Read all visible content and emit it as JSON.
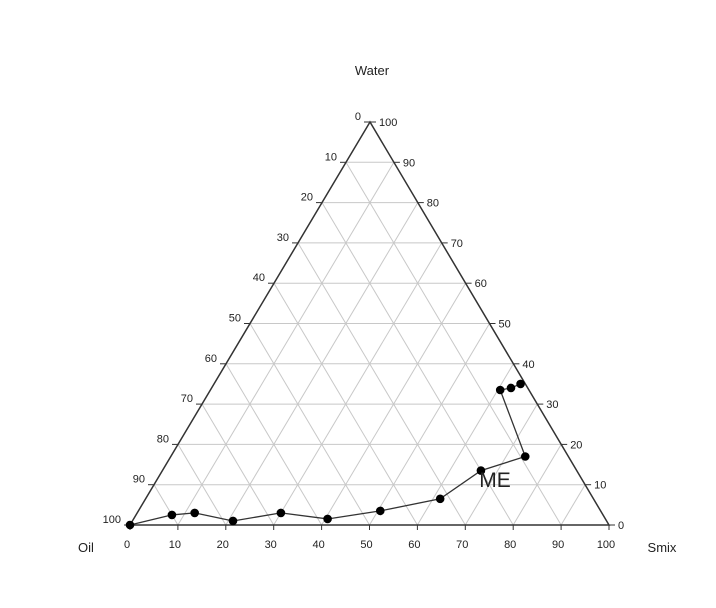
{
  "chart_data": {
    "type": "ternary-scatter-line",
    "axes": {
      "top": "Water",
      "left": "Oil",
      "right": "Smix"
    },
    "tick_values": [
      0,
      10,
      20,
      30,
      40,
      50,
      60,
      70,
      80,
      90,
      100
    ],
    "grid": true,
    "region_label": "ME",
    "series": [
      {
        "points": [
          {
            "oil": 100,
            "water": 0,
            "smix": 0
          },
          {
            "oil": 90,
            "water": 2.5,
            "smix": 7.5
          },
          {
            "oil": 85,
            "water": 3,
            "smix": 12
          },
          {
            "oil": 78,
            "water": 1,
            "smix": 21
          },
          {
            "oil": 67,
            "water": 3,
            "smix": 30
          },
          {
            "oil": 58,
            "water": 1.5,
            "smix": 40.5
          },
          {
            "oil": 46,
            "water": 3.5,
            "smix": 50.5
          },
          {
            "oil": 32,
            "water": 6.5,
            "smix": 61.5
          },
          {
            "oil": 20,
            "water": 13.5,
            "smix": 66.5
          },
          {
            "oil": 9,
            "water": 17,
            "smix": 74
          },
          {
            "oil": 6,
            "water": 33.5,
            "smix": 60.5
          },
          {
            "oil": 3.5,
            "water": 34,
            "smix": 62.5
          },
          {
            "oil": 1,
            "water": 35,
            "smix": 64
          }
        ]
      }
    ]
  }
}
